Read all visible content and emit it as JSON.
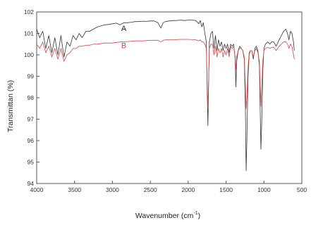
{
  "chart_data": {
    "type": "line",
    "xlabel": "Wavenumber (cm",
    "xlabel_sup": "-1",
    "xlabel_end": ")",
    "ylabel": "Transmittan (%)",
    "xlim": [
      4000,
      500
    ],
    "ylim": [
      94,
      102
    ],
    "x_ticks": [
      4000,
      3500,
      3000,
      2500,
      2000,
      1500,
      1000,
      500
    ],
    "x_tick_labels": [
      "4000",
      "3500",
      "3000",
      "2500",
      "2000",
      "1500",
      "1000",
      "500"
    ],
    "y_ticks": [
      94,
      95,
      96,
      97,
      98,
      99,
      100,
      101,
      102
    ],
    "y_tick_labels": [
      "94",
      "95",
      "96",
      "97",
      "98",
      "99",
      "100",
      "101",
      "102"
    ],
    "grid": false,
    "annotations": [
      {
        "text": "A",
        "x": 2850,
        "y": 101.25,
        "color": "#222222"
      },
      {
        "text": "B",
        "x": 2850,
        "y": 100.45,
        "color": "#d64545"
      }
    ],
    "series": [
      {
        "color": "#333333",
        "points": [
          [
            4000,
            101.2
          ],
          [
            3960,
            100.8
          ],
          [
            3920,
            101.1
          ],
          [
            3880,
            100.3
          ],
          [
            3840,
            100.9
          ],
          [
            3800,
            100.1
          ],
          [
            3760,
            100.8
          ],
          [
            3720,
            100.0
          ],
          [
            3680,
            100.9
          ],
          [
            3640,
            99.9
          ],
          [
            3600,
            100.6
          ],
          [
            3560,
            100.4
          ],
          [
            3520,
            100.9
          ],
          [
            3480,
            100.7
          ],
          [
            3440,
            101.0
          ],
          [
            3400,
            100.8
          ],
          [
            3350,
            101.1
          ],
          [
            3300,
            101.1
          ],
          [
            3250,
            101.2
          ],
          [
            3200,
            101.3
          ],
          [
            3150,
            101.35
          ],
          [
            3100,
            101.4
          ],
          [
            3050,
            101.42
          ],
          [
            3000,
            101.45
          ],
          [
            2950,
            101.48
          ],
          [
            2900,
            101.4
          ],
          [
            2850,
            101.5
          ],
          [
            2800,
            101.5
          ],
          [
            2750,
            101.52
          ],
          [
            2700,
            101.55
          ],
          [
            2650,
            101.55
          ],
          [
            2600,
            101.57
          ],
          [
            2550,
            101.56
          ],
          [
            2500,
            101.58
          ],
          [
            2450,
            101.58
          ],
          [
            2400,
            101.5
          ],
          [
            2360,
            101.25
          ],
          [
            2330,
            101.5
          ],
          [
            2300,
            101.55
          ],
          [
            2250,
            101.58
          ],
          [
            2200,
            101.6
          ],
          [
            2150,
            101.6
          ],
          [
            2100,
            101.62
          ],
          [
            2050,
            101.6
          ],
          [
            2000,
            101.62
          ],
          [
            1950,
            101.62
          ],
          [
            1900,
            101.6
          ],
          [
            1860,
            101.45
          ],
          [
            1840,
            101.6
          ],
          [
            1820,
            101.3
          ],
          [
            1800,
            101.5
          ],
          [
            1780,
            101.0
          ],
          [
            1760,
            100.6
          ],
          [
            1750,
            98.5
          ],
          [
            1740,
            96.7
          ],
          [
            1730,
            98.8
          ],
          [
            1720,
            100.6
          ],
          [
            1700,
            101.0
          ],
          [
            1680,
            101.1
          ],
          [
            1660,
            100.3
          ],
          [
            1640,
            100.9
          ],
          [
            1620,
            100.2
          ],
          [
            1600,
            100.7
          ],
          [
            1580,
            100.4
          ],
          [
            1560,
            100.6
          ],
          [
            1540,
            100.2
          ],
          [
            1520,
            100.5
          ],
          [
            1500,
            100.3
          ],
          [
            1480,
            100.5
          ],
          [
            1460,
            100.1
          ],
          [
            1440,
            100.5
          ],
          [
            1420,
            100.4
          ],
          [
            1400,
            100.5
          ],
          [
            1380,
            99.8
          ],
          [
            1370,
            98.5
          ],
          [
            1360,
            99.7
          ],
          [
            1340,
            100.2
          ],
          [
            1320,
            100.4
          ],
          [
            1300,
            100.3
          ],
          [
            1280,
            100.2
          ],
          [
            1260,
            99.8
          ],
          [
            1245,
            97.5
          ],
          [
            1235,
            94.6
          ],
          [
            1225,
            96.0
          ],
          [
            1210,
            99.0
          ],
          [
            1195,
            100.0
          ],
          [
            1180,
            100.2
          ],
          [
            1160,
            100.2
          ],
          [
            1140,
            99.8
          ],
          [
            1120,
            100.3
          ],
          [
            1100,
            100.4
          ],
          [
            1080,
            100.2
          ],
          [
            1060,
            99.5
          ],
          [
            1050,
            97.5
          ],
          [
            1040,
            95.6
          ],
          [
            1030,
            96.8
          ],
          [
            1015,
            99.3
          ],
          [
            1000,
            100.3
          ],
          [
            980,
            100.5
          ],
          [
            950,
            100.6
          ],
          [
            920,
            100.5
          ],
          [
            900,
            100.6
          ],
          [
            870,
            100.6
          ],
          [
            840,
            100.4
          ],
          [
            800,
            100.7
          ],
          [
            770,
            100.9
          ],
          [
            740,
            101.1
          ],
          [
            710,
            101.2
          ],
          [
            690,
            101.0
          ],
          [
            670,
            100.7
          ],
          [
            650,
            101.1
          ],
          [
            630,
            101.0
          ],
          [
            610,
            100.6
          ],
          [
            600,
            100.2
          ]
        ]
      },
      {
        "color": "#d64545",
        "points": [
          [
            4000,
            100.5
          ],
          [
            3960,
            100.3
          ],
          [
            3920,
            100.6
          ],
          [
            3880,
            100.1
          ],
          [
            3840,
            100.4
          ],
          [
            3800,
            99.9
          ],
          [
            3760,
            100.3
          ],
          [
            3720,
            99.8
          ],
          [
            3680,
            100.3
          ],
          [
            3640,
            99.7
          ],
          [
            3600,
            100.0
          ],
          [
            3560,
            100.1
          ],
          [
            3520,
            100.3
          ],
          [
            3480,
            100.3
          ],
          [
            3440,
            100.4
          ],
          [
            3400,
            100.4
          ],
          [
            3350,
            100.45
          ],
          [
            3300,
            100.45
          ],
          [
            3250,
            100.5
          ],
          [
            3200,
            100.5
          ],
          [
            3100,
            100.55
          ],
          [
            3000,
            100.55
          ],
          [
            2900,
            100.6
          ],
          [
            2800,
            100.62
          ],
          [
            2700,
            100.65
          ],
          [
            2600,
            100.65
          ],
          [
            2500,
            100.68
          ],
          [
            2400,
            100.68
          ],
          [
            2360,
            100.6
          ],
          [
            2330,
            100.68
          ],
          [
            2300,
            100.7
          ],
          [
            2200,
            100.7
          ],
          [
            2100,
            100.72
          ],
          [
            2000,
            100.72
          ],
          [
            1900,
            100.7
          ],
          [
            1860,
            100.65
          ],
          [
            1840,
            100.7
          ],
          [
            1820,
            100.6
          ],
          [
            1800,
            100.6
          ],
          [
            1780,
            100.5
          ],
          [
            1760,
            100.3
          ],
          [
            1750,
            98.8
          ],
          [
            1740,
            97.5
          ],
          [
            1730,
            99.0
          ],
          [
            1720,
            100.3
          ],
          [
            1700,
            100.5
          ],
          [
            1680,
            100.5
          ],
          [
            1660,
            100.0
          ],
          [
            1640,
            100.4
          ],
          [
            1620,
            99.9
          ],
          [
            1600,
            100.3
          ],
          [
            1580,
            100.1
          ],
          [
            1560,
            100.3
          ],
          [
            1540,
            99.9
          ],
          [
            1520,
            100.2
          ],
          [
            1500,
            100.0
          ],
          [
            1480,
            100.3
          ],
          [
            1460,
            99.9
          ],
          [
            1440,
            100.4
          ],
          [
            1420,
            100.3
          ],
          [
            1400,
            100.4
          ],
          [
            1380,
            99.9
          ],
          [
            1370,
            99.3
          ],
          [
            1360,
            99.9
          ],
          [
            1340,
            100.2
          ],
          [
            1320,
            100.3
          ],
          [
            1300,
            100.3
          ],
          [
            1280,
            100.2
          ],
          [
            1260,
            99.9
          ],
          [
            1245,
            98.5
          ],
          [
            1235,
            97.5
          ],
          [
            1225,
            98.0
          ],
          [
            1210,
            99.4
          ],
          [
            1195,
            100.1
          ],
          [
            1180,
            100.2
          ],
          [
            1160,
            100.2
          ],
          [
            1140,
            99.9
          ],
          [
            1120,
            100.2
          ],
          [
            1100,
            100.3
          ],
          [
            1080,
            100.1
          ],
          [
            1060,
            99.7
          ],
          [
            1050,
            98.6
          ],
          [
            1040,
            97.6
          ],
          [
            1030,
            98.4
          ],
          [
            1015,
            99.7
          ],
          [
            1000,
            100.2
          ],
          [
            980,
            100.3
          ],
          [
            950,
            100.35
          ],
          [
            920,
            100.3
          ],
          [
            900,
            100.35
          ],
          [
            870,
            100.35
          ],
          [
            840,
            100.2
          ],
          [
            800,
            100.4
          ],
          [
            770,
            100.5
          ],
          [
            740,
            100.6
          ],
          [
            710,
            100.6
          ],
          [
            690,
            100.5
          ],
          [
            670,
            100.3
          ],
          [
            650,
            100.5
          ],
          [
            630,
            100.4
          ],
          [
            610,
            100.0
          ],
          [
            600,
            99.8
          ]
        ]
      }
    ]
  }
}
